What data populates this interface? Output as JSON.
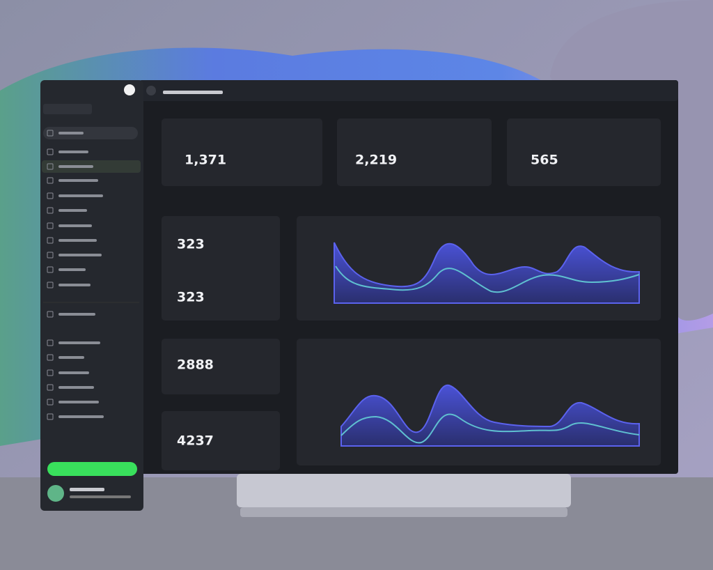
{
  "cards": [
    {
      "value": "1,371"
    },
    {
      "value": "2,219"
    },
    {
      "value": "565"
    }
  ],
  "panels": [
    {
      "value": "323"
    },
    {
      "value": "323"
    },
    {
      "value": "2888"
    },
    {
      "value": "4237"
    }
  ]
}
